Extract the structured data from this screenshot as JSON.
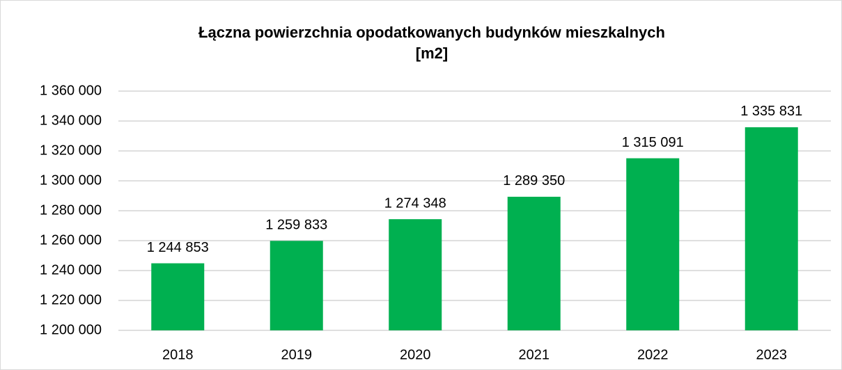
{
  "chart_data": {
    "type": "bar",
    "title": [
      "Łączna powierzchnia opodatkowanych budynków mieszkalnych",
      "[m2]"
    ],
    "categories": [
      "2018",
      "2019",
      "2020",
      "2021",
      "2022",
      "2023"
    ],
    "values": [
      1244853,
      1259833,
      1274348,
      1289350,
      1315091,
      1335831
    ],
    "value_labels": [
      "1 244 853",
      "1 259 833",
      "1 274 348",
      "1 289 350",
      "1 315 091",
      "1 335 831"
    ],
    "color": "#00b050",
    "ylim": [
      1200000,
      1360000
    ],
    "yticks": [
      {
        "value": 1200000,
        "label": "1 200 000"
      },
      {
        "value": 1220000,
        "label": "1 220 000"
      },
      {
        "value": 1240000,
        "label": "1 240 000"
      },
      {
        "value": 1260000,
        "label": "1 260 000"
      },
      {
        "value": 1280000,
        "label": "1 280 000"
      },
      {
        "value": 1300000,
        "label": "1 300 000"
      },
      {
        "value": 1320000,
        "label": "1 320 000"
      },
      {
        "value": 1340000,
        "label": "1 340 000"
      },
      {
        "value": 1360000,
        "label": "1 360 000"
      }
    ],
    "grid": true
  }
}
